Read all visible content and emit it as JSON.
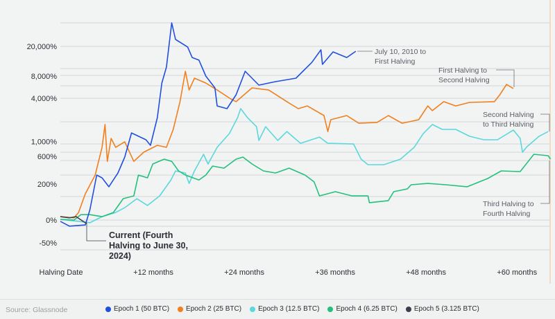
{
  "chart_data": {
    "type": "line",
    "title": "",
    "xlabel": "",
    "ylabel": "",
    "y_scale": "log (1 + return)",
    "x_unit": "months since halving",
    "xlim": [
      0,
      65
    ],
    "ylim": [
      -50,
      41000
    ],
    "y_ticks": [
      {
        "value": 20000,
        "label": "20,000%"
      },
      {
        "value": 8000,
        "label": "8,000%"
      },
      {
        "value": 4000,
        "label": "4,000%"
      },
      {
        "value": 1000,
        "label": "1,000%"
      },
      {
        "value": 600,
        "label": "600%"
      },
      {
        "value": 200,
        "label": "200%"
      },
      {
        "value": 0,
        "label": "0%"
      },
      {
        "value": -50,
        "label": "-50%"
      }
    ],
    "x_ticks": [
      {
        "value": 0,
        "label": "Halving Date"
      },
      {
        "value": 12,
        "label": "+12 months"
      },
      {
        "value": 24,
        "label": "+24 months"
      },
      {
        "value": 36,
        "label": "+36 months"
      },
      {
        "value": 48,
        "label": "+48 months"
      },
      {
        "value": 60,
        "label": "+60 months"
      }
    ],
    "grid": true,
    "legend_position": "bottom",
    "series": [
      {
        "name": "Epoch 1 (50 BTC)",
        "color": "#1f4fe0",
        "annotation": [
          "July 10, 2010 to",
          "First Halving"
        ],
        "points": [
          [
            0,
            -4
          ],
          [
            1.2,
            -17
          ],
          [
            3.3,
            -14
          ],
          [
            3.9,
            37
          ],
          [
            4.8,
            295
          ],
          [
            5.5,
            263
          ],
          [
            6.4,
            176
          ],
          [
            7.6,
            321
          ],
          [
            8.5,
            584
          ],
          [
            9.4,
            1330
          ],
          [
            11.3,
            1060
          ],
          [
            11.9,
            880
          ],
          [
            12.8,
            2180
          ],
          [
            13.4,
            6460
          ],
          [
            14.0,
            10560
          ],
          [
            14.7,
            41100
          ],
          [
            15.2,
            24700
          ],
          [
            16.8,
            19600
          ],
          [
            17.4,
            14200
          ],
          [
            18.3,
            13100
          ],
          [
            19.2,
            8000
          ],
          [
            20.4,
            5550
          ],
          [
            20.7,
            3160
          ],
          [
            22.0,
            2900
          ],
          [
            23.2,
            4480
          ],
          [
            24.4,
            9280
          ],
          [
            26.2,
            6050
          ],
          [
            28.4,
            6740
          ],
          [
            31.1,
            7500
          ],
          [
            33.2,
            12200
          ],
          [
            34.4,
            17970
          ],
          [
            34.6,
            11500
          ],
          [
            36.0,
            16850
          ],
          [
            37.8,
            14200
          ],
          [
            39.0,
            17200
          ]
        ]
      },
      {
        "name": "Epoch 2 (25 BTC)",
        "color": "#f07f1c",
        "annotation": [
          "First Halving to",
          "Second Halving"
        ],
        "points": [
          [
            0,
            11
          ],
          [
            1.8,
            7
          ],
          [
            2.4,
            26
          ],
          [
            3.3,
            123
          ],
          [
            4.6,
            295
          ],
          [
            5.5,
            820
          ],
          [
            5.9,
            1750
          ],
          [
            6.2,
            500
          ],
          [
            6.7,
            1110
          ],
          [
            7.3,
            820
          ],
          [
            8.5,
            990
          ],
          [
            9.7,
            500
          ],
          [
            11.0,
            693
          ],
          [
            12.8,
            880
          ],
          [
            14.0,
            820
          ],
          [
            14.9,
            1490
          ],
          [
            15.8,
            3610
          ],
          [
            16.5,
            9280
          ],
          [
            17.0,
            5200
          ],
          [
            17.7,
            7500
          ],
          [
            19.2,
            6460
          ],
          [
            20.7,
            5200
          ],
          [
            22.5,
            3930
          ],
          [
            23.2,
            3610
          ],
          [
            25.3,
            5550
          ],
          [
            27.5,
            5200
          ],
          [
            29.9,
            3610
          ],
          [
            31.4,
            2900
          ],
          [
            32.6,
            3160
          ],
          [
            34.8,
            2330
          ],
          [
            35.3,
            1390
          ],
          [
            35.7,
            2040
          ],
          [
            37.8,
            2330
          ],
          [
            39.4,
            1820
          ],
          [
            41.8,
            1870
          ],
          [
            43.3,
            2330
          ],
          [
            45.1,
            1820
          ],
          [
            47.3,
            2040
          ],
          [
            48.5,
            3160
          ],
          [
            49.1,
            2720
          ],
          [
            50.6,
            3610
          ],
          [
            52.2,
            3160
          ],
          [
            54.0,
            3530
          ],
          [
            57.3,
            3610
          ],
          [
            58.0,
            4480
          ],
          [
            58.9,
            6180
          ],
          [
            59.8,
            5430
          ]
        ]
      },
      {
        "name": "Epoch 3 (12.5 BTC)",
        "color": "#5ad8dc",
        "annotation": [
          "Second Halving",
          "to Third Halving"
        ],
        "points": [
          [
            0,
            2
          ],
          [
            2.4,
            -4
          ],
          [
            3.9,
            -8
          ],
          [
            5.5,
            11
          ],
          [
            7.3,
            26
          ],
          [
            8.5,
            46
          ],
          [
            10.1,
            92
          ],
          [
            11.5,
            56
          ],
          [
            13.1,
            109
          ],
          [
            14.6,
            240
          ],
          [
            15.2,
            348
          ],
          [
            16.5,
            321
          ],
          [
            17.0,
            206
          ],
          [
            17.7,
            348
          ],
          [
            18.9,
            644
          ],
          [
            19.5,
            453
          ],
          [
            20.7,
            820
          ],
          [
            22.3,
            1300
          ],
          [
            23.4,
            2180
          ],
          [
            23.8,
            2900
          ],
          [
            24.7,
            2180
          ],
          [
            25.9,
            1630
          ],
          [
            26.2,
            1035
          ],
          [
            27.1,
            1630
          ],
          [
            28.7,
            1035
          ],
          [
            29.9,
            1390
          ],
          [
            31.7,
            940
          ],
          [
            34.2,
            1160
          ],
          [
            35.3,
            940
          ],
          [
            38.7,
            920
          ],
          [
            39.7,
            542
          ],
          [
            40.6,
            442
          ],
          [
            42.7,
            442
          ],
          [
            44.9,
            542
          ],
          [
            46.7,
            820
          ],
          [
            47.9,
            1300
          ],
          [
            49.1,
            1750
          ],
          [
            50.4,
            1490
          ],
          [
            52.2,
            1490
          ],
          [
            54.0,
            1190
          ],
          [
            55.9,
            1060
          ],
          [
            57.7,
            1060
          ],
          [
            59.8,
            1460
          ],
          [
            60.7,
            1110
          ],
          [
            61.0,
            693
          ],
          [
            61.6,
            840
          ],
          [
            63.2,
            1190
          ],
          [
            64.4,
            1390
          ]
        ]
      },
      {
        "name": "Epoch 4 (6.25 BTC)",
        "color": "#22c07d",
        "annotation": [
          "Third Halving to",
          "Fourth Halving"
        ],
        "points": [
          [
            0,
            2
          ],
          [
            1.8,
            0
          ],
          [
            2.7,
            18
          ],
          [
            3.9,
            18
          ],
          [
            5.5,
            11
          ],
          [
            7.0,
            26
          ],
          [
            8.3,
            92
          ],
          [
            9.7,
            109
          ],
          [
            10.3,
            295
          ],
          [
            11.5,
            263
          ],
          [
            12.2,
            453
          ],
          [
            13.7,
            542
          ],
          [
            14.7,
            500
          ],
          [
            15.6,
            348
          ],
          [
            16.5,
            295
          ],
          [
            18.3,
            240
          ],
          [
            19.2,
            295
          ],
          [
            20.1,
            420
          ],
          [
            21.6,
            388
          ],
          [
            23.2,
            542
          ],
          [
            24.1,
            584
          ],
          [
            25.3,
            453
          ],
          [
            26.8,
            348
          ],
          [
            28.4,
            321
          ],
          [
            30.2,
            388
          ],
          [
            32.3,
            295
          ],
          [
            33.5,
            220
          ],
          [
            34.2,
            109
          ],
          [
            36.3,
            138
          ],
          [
            38.5,
            109
          ],
          [
            40.6,
            109
          ],
          [
            40.8,
            70
          ],
          [
            43.3,
            81
          ],
          [
            44.0,
            138
          ],
          [
            45.8,
            159
          ],
          [
            46.3,
            194
          ],
          [
            48.5,
            206
          ],
          [
            50.9,
            194
          ],
          [
            53.7,
            176
          ],
          [
            56.4,
            255
          ],
          [
            58.2,
            348
          ],
          [
            60.7,
            339
          ],
          [
            62.5,
            644
          ],
          [
            64.4,
            613
          ],
          [
            64.7,
            542
          ]
        ]
      },
      {
        "name": "Epoch 5 (3.125 BTC)",
        "color": "#3a3f4b",
        "annotation": [
          "Current (Fourth",
          "Halving to June 30,",
          "2024)"
        ],
        "points": [
          [
            0,
            11
          ],
          [
            1.2,
            7
          ],
          [
            2.1,
            11
          ],
          [
            3.0,
            -4
          ],
          [
            3.5,
            -10
          ]
        ]
      }
    ]
  },
  "footer": {
    "source": "Source: Glassnode"
  }
}
